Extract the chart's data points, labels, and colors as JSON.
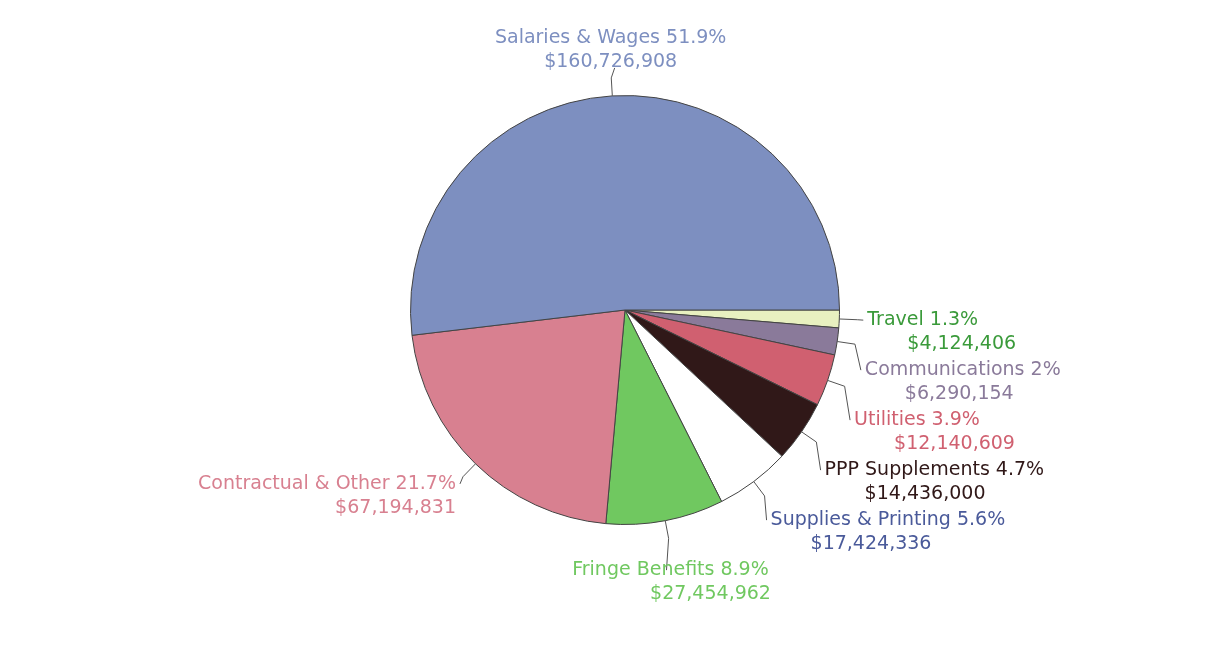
{
  "chart_data": {
    "type": "pie",
    "categories": [
      "Travel 1.3%",
      "Communications 2%",
      "Utilities 3.9%",
      "PPP Supplements 4.7%",
      "Supplies & Printing 5.6%",
      "Fringe Benefits 8.9%",
      "Contractual & Other 21.7%",
      "Salaries & Wages 51.9%"
    ],
    "values": [
      4124406,
      6290154,
      12140609,
      14436000,
      17424336,
      27454962,
      67194831,
      160726908
    ],
    "value_labels": [
      "$4,124,406",
      "$6,290,154",
      "$12,140,609",
      "$14,436,000",
      "$17,424,336",
      "$27,454,962",
      "$67,194,831",
      "$160,726,908"
    ],
    "colors": [
      "#e8f0c0",
      "#8a7a9a",
      "#d06070",
      "#301818",
      "#ffffff",
      "#70c860",
      "#d88090",
      "#7d8fc0"
    ],
    "legend": false
  }
}
